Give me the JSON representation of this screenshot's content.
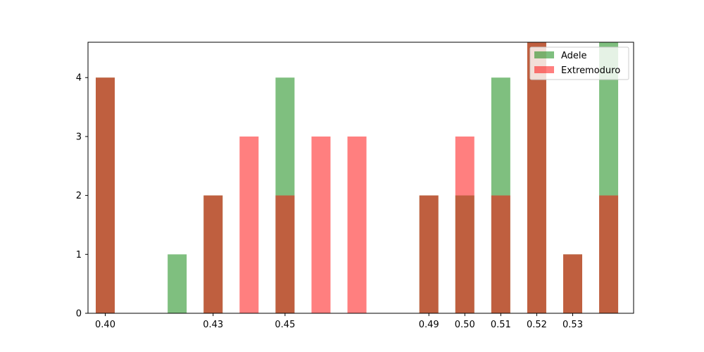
{
  "chart_data": {
    "type": "bar",
    "x_ticks": [
      "0.40",
      "0.43",
      "0.45",
      "0.49",
      "0.50",
      "0.51",
      "0.52",
      "0.53"
    ],
    "categories": [
      "0.40",
      "0.41",
      "0.42",
      "0.43",
      "0.44",
      "0.45",
      "0.46",
      "0.47",
      "0.48",
      "0.49",
      "0.50",
      "0.51",
      "0.52",
      "0.53",
      "0.54"
    ],
    "x": [
      0.4,
      0.415,
      0.42,
      0.43,
      0.44,
      0.45,
      0.46,
      0.47,
      0.48,
      0.49,
      0.5,
      0.51,
      0.52,
      0.53,
      0.54
    ],
    "series": [
      {
        "name": "Adele",
        "color": "#008000",
        "opacity": 0.5,
        "values": [
          4,
          0,
          1,
          2,
          0,
          4,
          0,
          0,
          0,
          2,
          2,
          4,
          5,
          1,
          5
        ]
      },
      {
        "name": "Extremoduro",
        "color": "#ff0000",
        "opacity": 0.5,
        "values": [
          4,
          0,
          0,
          2,
          3,
          2,
          3,
          3,
          0,
          2,
          3,
          2,
          5,
          1,
          2
        ]
      }
    ],
    "y_ticks": [
      0,
      1,
      2,
      3,
      4
    ],
    "ylim": [
      0,
      4.6
    ],
    "legend_position": "top-right",
    "grid": false,
    "title": "",
    "xlabel": "",
    "ylabel": ""
  }
}
